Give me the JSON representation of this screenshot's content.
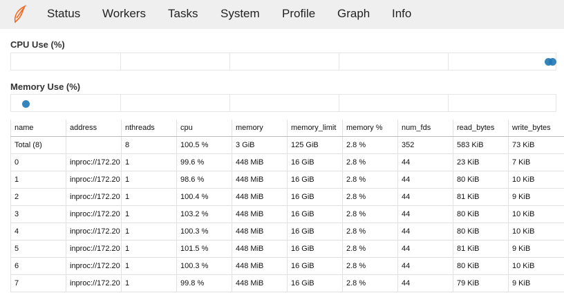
{
  "nav": [
    "Status",
    "Workers",
    "Tasks",
    "System",
    "Profile",
    "Graph",
    "Info"
  ],
  "cpu_title": "CPU Use (%)",
  "memory_title": "Memory Use (%)",
  "table": {
    "columns": [
      "name",
      "address",
      "nthreads",
      "cpu",
      "memory",
      "memory_limit",
      "memory %",
      "num_fds",
      "read_bytes",
      "write_bytes"
    ],
    "rows": [
      [
        "Total (8)",
        null,
        "8",
        "100.5 %",
        "3 GiB",
        "125 GiB",
        "2.8 %",
        "352",
        "583 KiB",
        "73 KiB"
      ],
      [
        "0",
        "inproc://172.20",
        "1",
        "99.6 %",
        "448 MiB",
        "16 GiB",
        "2.8 %",
        "44",
        "23 KiB",
        "7 KiB"
      ],
      [
        "1",
        "inproc://172.20",
        "1",
        "98.6 %",
        "448 MiB",
        "16 GiB",
        "2.8 %",
        "44",
        "80 KiB",
        "10 KiB"
      ],
      [
        "2",
        "inproc://172.20",
        "1",
        "100.4 %",
        "448 MiB",
        "16 GiB",
        "2.8 %",
        "44",
        "81 KiB",
        "9 KiB"
      ],
      [
        "3",
        "inproc://172.20",
        "1",
        "103.2 %",
        "448 MiB",
        "16 GiB",
        "2.8 %",
        "44",
        "80 KiB",
        "10 KiB"
      ],
      [
        "4",
        "inproc://172.20",
        "1",
        "100.3 %",
        "448 MiB",
        "16 GiB",
        "2.8 %",
        "44",
        "80 KiB",
        "10 KiB"
      ],
      [
        "5",
        "inproc://172.20",
        "1",
        "101.5 %",
        "448 MiB",
        "16 GiB",
        "2.8 %",
        "44",
        "81 KiB",
        "9 KiB"
      ],
      [
        "6",
        "inproc://172.20",
        "1",
        "100.3 %",
        "448 MiB",
        "16 GiB",
        "2.8 %",
        "44",
        "80 KiB",
        "10 KiB"
      ],
      [
        "7",
        "inproc://172.20",
        "1",
        "99.8 %",
        "448 MiB",
        "16 GiB",
        "2.8 %",
        "44",
        "79 KiB",
        "9 KiB"
      ]
    ]
  }
}
